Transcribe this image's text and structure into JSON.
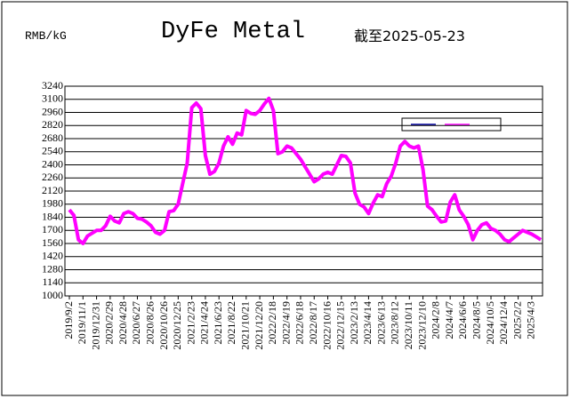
{
  "chart_data": {
    "type": "line",
    "title": "DyFe Metal",
    "subtitle": "截至2025-05-23",
    "y_label": "RMB/kG",
    "categories": [
      "2019/9/2",
      null,
      null,
      "2019/11/1",
      null,
      null,
      "2019/12/31",
      null,
      null,
      "2020/2/29",
      null,
      null,
      "2020/4/28",
      null,
      null,
      "2020/6/27",
      null,
      null,
      "2020/8/26",
      null,
      null,
      "2020/10/26",
      null,
      null,
      "2020/12/25",
      null,
      null,
      "2021/2/23",
      null,
      null,
      "2021/4/24",
      null,
      null,
      "2021/6/23",
      null,
      null,
      "2021/8/22",
      null,
      null,
      "2021/10/21",
      null,
      null,
      "2021/12/20",
      null,
      null,
      "2022/2/18",
      null,
      null,
      "2022/4/19",
      null,
      null,
      "2022/6/18",
      null,
      null,
      "2022/8/17",
      null,
      null,
      "2022/10/16",
      null,
      null,
      "2022/12/15",
      null,
      null,
      "2023/2/13",
      null,
      null,
      "2023/4/14",
      null,
      null,
      "2023/6/13",
      null,
      null,
      "2023/8/12",
      null,
      null,
      "2023/10/11",
      null,
      null,
      "2023/12/10",
      null,
      null,
      "2024/2/8",
      null,
      null,
      "2024/4/7",
      null,
      null,
      "2024/6/6",
      null,
      null,
      "2024/8/5",
      null,
      null,
      "2024/10/5",
      null,
      null,
      "2024/12/4",
      null,
      null,
      "2025/2/2",
      null,
      null,
      "2025/4/3",
      null,
      null
    ],
    "series": [
      {
        "color": "#ff00ff",
        "values": [
          1920,
          1860,
          1600,
          1560,
          1640,
          1670,
          1700,
          1700,
          1750,
          1850,
          1800,
          1780,
          1880,
          1900,
          1880,
          1830,
          1820,
          1790,
          1750,
          1680,
          1660,
          1700,
          1900,
          1910,
          1980,
          2200,
          2420,
          3010,
          3060,
          3000,
          2500,
          2300,
          2330,
          2420,
          2600,
          2700,
          2620,
          2740,
          2720,
          2980,
          2950,
          2940,
          2980,
          3050,
          3110,
          2980,
          2520,
          2540,
          2600,
          2580,
          2520,
          2460,
          2380,
          2300,
          2220,
          2250,
          2300,
          2320,
          2300,
          2400,
          2500,
          2490,
          2420,
          2100,
          1980,
          1950,
          1880,
          1990,
          2080,
          2060,
          2200,
          2280,
          2420,
          2600,
          2650,
          2600,
          2580,
          2600,
          2350,
          1960,
          1920,
          1850,
          1790,
          1800,
          2000,
          2080,
          1920,
          1850,
          1760,
          1600,
          1700,
          1760,
          1780,
          1720,
          1700,
          1660,
          1600,
          1580,
          1620,
          1660,
          1700,
          1680,
          1660,
          1630,
          1600
        ]
      }
    ],
    "ylim": [
      1000,
      3240
    ],
    "yticks": [
      1000,
      1140,
      1280,
      1420,
      1560,
      1700,
      1840,
      1980,
      2120,
      2260,
      2400,
      2540,
      2680,
      2820,
      2960,
      3100,
      3240
    ],
    "grid": true
  }
}
